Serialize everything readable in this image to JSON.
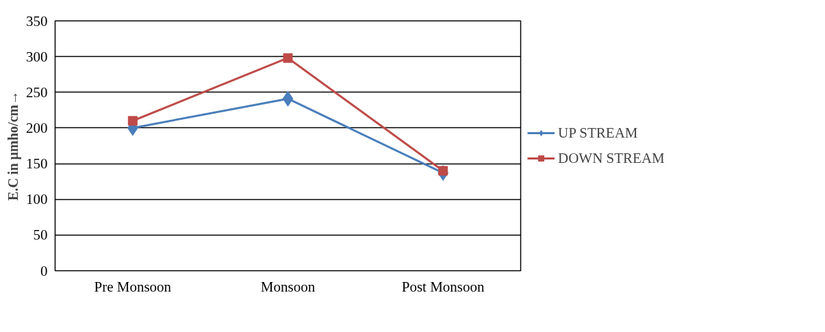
{
  "chart_data": {
    "type": "line",
    "ylabel": "E.C in µmho/cm→",
    "categories": [
      "Pre Monsoon",
      "Monsoon",
      "Post Monsoon"
    ],
    "series": [
      {
        "name": "UP STREAM",
        "color": "#4a7ebb",
        "marker": "diamond",
        "values": [
          200,
          241,
          137
        ]
      },
      {
        "name": "DOWN STREAM",
        "color": "#be4b48",
        "marker": "square",
        "values": [
          210,
          298,
          140
        ]
      }
    ],
    "ylim": [
      0,
      350
    ],
    "yticks": [
      0,
      50,
      100,
      150,
      200,
      250,
      300,
      350
    ],
    "grid": "y",
    "legend": "right"
  }
}
